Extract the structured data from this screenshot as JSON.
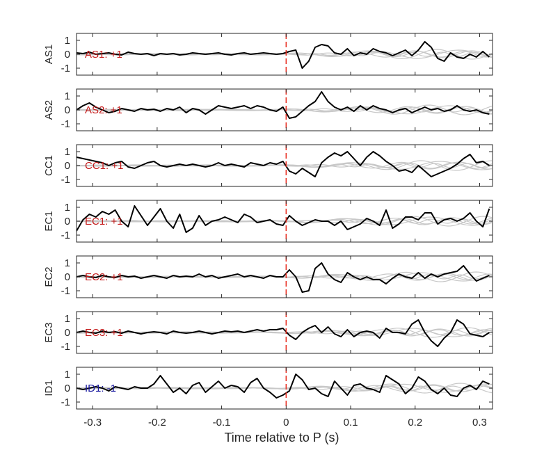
{
  "chart_data": {
    "type": "line",
    "xlabel": "Time relative to P (s)",
    "xlim": [
      -0.325,
      0.32
    ],
    "ylim": [
      -1.5,
      1.5
    ],
    "xticks": [
      -0.3,
      -0.2,
      -0.1,
      0,
      0.1,
      0.2,
      0.3
    ],
    "xtick_labels": [
      "-0.3",
      "-0.2",
      "-0.1",
      "0",
      "0.1",
      "0.2",
      "0.3"
    ],
    "yticks": [
      -1,
      0,
      1
    ],
    "ytick_labels": [
      "-1",
      "0",
      "1"
    ],
    "reference_line": {
      "x": 0,
      "color": "#e8291c",
      "style": "dashed"
    },
    "colors": {
      "main": "#000000",
      "background": "#c8c8c8",
      "positive_label": "#c41a1a",
      "negative_label": "#1a1aa0"
    },
    "x": [
      -0.325,
      -0.315,
      -0.305,
      -0.295,
      -0.285,
      -0.275,
      -0.265,
      -0.255,
      -0.245,
      -0.235,
      -0.225,
      -0.215,
      -0.205,
      -0.195,
      -0.185,
      -0.175,
      -0.165,
      -0.155,
      -0.145,
      -0.135,
      -0.125,
      -0.115,
      -0.105,
      -0.095,
      -0.085,
      -0.075,
      -0.065,
      -0.055,
      -0.045,
      -0.035,
      -0.025,
      -0.015,
      -0.005,
      0.005,
      0.015,
      0.025,
      0.035,
      0.045,
      0.055,
      0.065,
      0.075,
      0.085,
      0.095,
      0.105,
      0.115,
      0.125,
      0.135,
      0.145,
      0.155,
      0.165,
      0.175,
      0.185,
      0.195,
      0.205,
      0.215,
      0.225,
      0.235,
      0.245,
      0.255,
      0.265,
      0.275,
      0.285,
      0.295,
      0.305,
      0.315
    ],
    "panels": [
      {
        "name": "AS1",
        "label": "AS1: +1",
        "polarity": "positive",
        "values": [
          0.1,
          0.05,
          0.15,
          0.0,
          0.05,
          0.1,
          0.0,
          -0.05,
          0.15,
          0.05,
          0.0,
          0.05,
          -0.1,
          0.05,
          0.0,
          0.05,
          -0.05,
          0.0,
          0.1,
          0.05,
          0.0,
          0.05,
          0.1,
          0.0,
          -0.05,
          0.05,
          0.1,
          0.0,
          0.05,
          0.1,
          0.05,
          0.0,
          0.05,
          0.2,
          0.3,
          -1.0,
          -0.5,
          0.5,
          0.7,
          0.6,
          0.1,
          0.0,
          0.4,
          -0.1,
          0.1,
          0.0,
          0.4,
          0.2,
          0.1,
          -0.1,
          0.1,
          0.3,
          -0.1,
          0.3,
          0.9,
          0.5,
          -0.3,
          -0.5,
          0.1,
          -0.2,
          -0.3,
          0.0,
          -0.2,
          0.2,
          -0.2
        ]
      },
      {
        "name": "AS2",
        "label": "AS2: +1",
        "polarity": "positive",
        "values": [
          0.0,
          0.3,
          0.5,
          0.2,
          0.0,
          -0.2,
          -0.1,
          0.1,
          0.0,
          -0.1,
          0.1,
          0.0,
          0.05,
          -0.1,
          0.1,
          0.0,
          0.2,
          -0.2,
          0.1,
          0.0,
          -0.3,
          0.0,
          0.3,
          0.2,
          0.1,
          0.2,
          0.3,
          0.1,
          0.3,
          0.2,
          0.0,
          -0.1,
          0.2,
          -0.6,
          -0.5,
          -0.1,
          0.3,
          0.6,
          1.3,
          0.6,
          0.2,
          0.0,
          0.2,
          -0.1,
          0.3,
          0.0,
          0.3,
          0.1,
          0.0,
          -0.2,
          0.0,
          0.1,
          -0.2,
          0.0,
          0.2,
          0.0,
          0.1,
          -0.1,
          0.0,
          0.3,
          0.0,
          -0.1,
          0.0,
          -0.2,
          -0.3
        ]
      },
      {
        "name": "CC1",
        "label": "CC1: +1",
        "polarity": "positive",
        "values": [
          0.6,
          0.5,
          0.4,
          0.3,
          0.2,
          0.0,
          0.2,
          0.3,
          -0.1,
          -0.2,
          0.0,
          0.2,
          0.3,
          0.0,
          -0.1,
          0.0,
          0.1,
          0.0,
          0.1,
          0.0,
          -0.1,
          0.0,
          0.2,
          0.0,
          0.1,
          0.0,
          -0.1,
          0.2,
          0.1,
          0.0,
          0.2,
          0.1,
          0.3,
          -0.4,
          -0.6,
          -0.2,
          -0.5,
          -0.8,
          0.2,
          0.6,
          0.9,
          0.7,
          1.0,
          0.5,
          0.0,
          0.6,
          1.0,
          0.7,
          0.3,
          0.0,
          -0.4,
          -0.3,
          -0.5,
          0.0,
          -0.4,
          -0.8,
          -0.6,
          -0.4,
          -0.2,
          0.1,
          0.5,
          0.8,
          0.2,
          0.3,
          0.0
        ]
      },
      {
        "name": "EC1",
        "label": "EC1: +1",
        "polarity": "positive",
        "values": [
          -0.7,
          0.1,
          0.5,
          0.3,
          0.7,
          0.5,
          0.8,
          0.0,
          -0.4,
          1.1,
          0.4,
          -0.3,
          0.3,
          0.9,
          0.0,
          -0.5,
          0.5,
          -0.8,
          -0.5,
          0.4,
          -0.3,
          0.0,
          0.1,
          0.3,
          0.1,
          -0.1,
          0.5,
          0.3,
          -0.1,
          0.0,
          0.1,
          -0.2,
          -0.3,
          0.4,
          0.0,
          -0.3,
          -0.1,
          0.1,
          0.0,
          0.0,
          -0.3,
          0.0,
          -0.6,
          -0.4,
          -0.2,
          0.2,
          0.0,
          -0.3,
          0.8,
          -0.5,
          -0.2,
          0.3,
          0.3,
          0.1,
          0.6,
          0.6,
          -0.2,
          0.1,
          0.2,
          0.0,
          0.2,
          0.6,
          0.0,
          -0.4,
          0.9
        ]
      },
      {
        "name": "EC2",
        "label": "EC2: +1",
        "polarity": "positive",
        "values": [
          0.0,
          0.1,
          0.0,
          -0.05,
          0.1,
          0.0,
          -0.05,
          0.1,
          0.0,
          0.05,
          -0.1,
          0.0,
          0.1,
          0.0,
          -0.1,
          0.1,
          0.0,
          0.05,
          0.0,
          0.2,
          0.0,
          0.1,
          -0.1,
          0.0,
          0.1,
          0.2,
          0.0,
          0.1,
          0.0,
          -0.1,
          0.1,
          0.0,
          0.0,
          0.5,
          0.0,
          -1.1,
          -1.0,
          0.6,
          1.0,
          0.2,
          -0.2,
          -0.4,
          0.3,
          0.0,
          -0.2,
          0.0,
          -0.2,
          -0.2,
          -0.5,
          -0.1,
          0.2,
          0.0,
          -0.1,
          0.3,
          -0.1,
          0.2,
          0.0,
          0.2,
          0.3,
          0.4,
          0.8,
          0.2,
          -0.3,
          -0.1,
          0.1
        ]
      },
      {
        "name": "EC3",
        "label": "EC3: +1",
        "polarity": "positive",
        "values": [
          0.0,
          0.1,
          0.0,
          -0.05,
          0.1,
          0.0,
          0.05,
          -0.05,
          0.1,
          0.0,
          -0.1,
          0.0,
          0.05,
          0.0,
          -0.1,
          0.1,
          0.0,
          -0.05,
          0.0,
          0.1,
          0.0,
          -0.1,
          0.0,
          0.1,
          0.05,
          0.1,
          0.0,
          0.1,
          0.2,
          0.1,
          0.2,
          0.2,
          0.3,
          -0.2,
          -0.5,
          0.0,
          0.3,
          0.5,
          0.0,
          0.4,
          -0.1,
          -0.3,
          0.2,
          -0.3,
          0.0,
          0.1,
          0.0,
          -0.4,
          0.3,
          0.0,
          0.0,
          -0.1,
          0.6,
          0.9,
          0.0,
          -0.6,
          -1.0,
          -0.4,
          0.0,
          0.9,
          0.6,
          -0.1,
          -0.2,
          -0.3,
          0.0
        ]
      },
      {
        "name": "ID1",
        "label": "ID1: -1",
        "polarity": "negative",
        "values": [
          0.0,
          -0.1,
          0.0,
          0.1,
          0.0,
          -0.2,
          0.1,
          0.0,
          -0.1,
          0.1,
          0.0,
          0.0,
          0.3,
          0.9,
          0.3,
          -0.3,
          0.0,
          -0.4,
          0.2,
          0.4,
          -0.3,
          0.1,
          0.5,
          0.0,
          0.2,
          0.1,
          -0.3,
          0.4,
          0.7,
          0.0,
          -0.3,
          -0.7,
          -0.5,
          -0.2,
          1.0,
          0.6,
          -0.1,
          0.0,
          -0.4,
          -0.6,
          0.5,
          0.0,
          -0.5,
          0.2,
          0.3,
          0.0,
          -0.1,
          -0.3,
          0.9,
          0.6,
          0.3,
          -0.4,
          0.0,
          0.8,
          0.5,
          -0.1,
          -0.4,
          0.0,
          -0.5,
          -0.6,
          0.0,
          0.2,
          -0.1,
          0.5,
          0.3
        ]
      }
    ],
    "background_traces_note": "",
    "background_traces": [
      {
        "amp": 0.25,
        "period": 0.09,
        "phase": 0.3
      },
      {
        "amp": 0.3,
        "period": 0.13,
        "phase": 1.2
      },
      {
        "amp": 0.2,
        "period": 0.07,
        "phase": 2.0
      },
      {
        "amp": 0.35,
        "period": 0.11,
        "phase": 0.8
      },
      {
        "amp": 0.15,
        "period": 0.05,
        "phase": 2.6
      }
    ]
  }
}
